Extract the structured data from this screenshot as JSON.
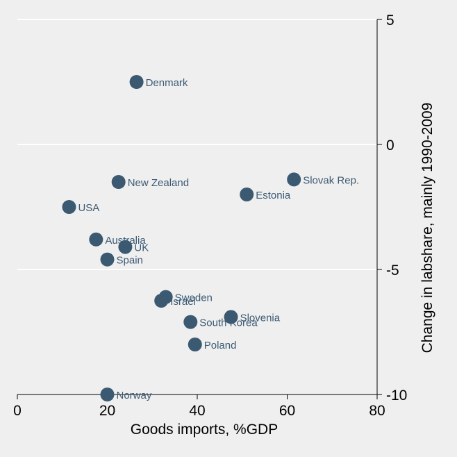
{
  "chart_data": {
    "type": "scatter",
    "title": "",
    "xlabel": "Goods imports, %GDP",
    "ylabel": "Change in labshare, mainly 1990-2009",
    "xlim": [
      0,
      80
    ],
    "ylim": [
      -10,
      5
    ],
    "x_ticks": [
      "0",
      "20",
      "40",
      "60",
      "80"
    ],
    "y_ticks": [
      "5",
      "0",
      "-5",
      "-10"
    ],
    "y_axis_side": "right",
    "grid": "horizontal",
    "marker_color": "#3b5a72",
    "points": [
      {
        "label": "Denmark",
        "x": 26.5,
        "y": 2.5
      },
      {
        "label": "New Zealand",
        "x": 22.5,
        "y": -1.5
      },
      {
        "label": "Slovak Rep.",
        "x": 61.5,
        "y": -1.4
      },
      {
        "label": "Estonia",
        "x": 51,
        "y": -2.0
      },
      {
        "label": "USA",
        "x": 11.5,
        "y": -2.5
      },
      {
        "label": "Australia",
        "x": 17.5,
        "y": -3.8
      },
      {
        "label": "UK",
        "x": 24,
        "y": -4.1
      },
      {
        "label": "Spain",
        "x": 20,
        "y": -4.6
      },
      {
        "label": "Sweden",
        "x": 33,
        "y": -6.1
      },
      {
        "label": "Israel",
        "x": 32,
        "y": -6.25
      },
      {
        "label": "Slovenia",
        "x": 47.5,
        "y": -6.9
      },
      {
        "label": "South Korea",
        "x": 38.5,
        "y": -7.1
      },
      {
        "label": "Poland",
        "x": 39.5,
        "y": -8.0
      },
      {
        "label": "Norway",
        "x": 20,
        "y": -10.0
      }
    ]
  }
}
